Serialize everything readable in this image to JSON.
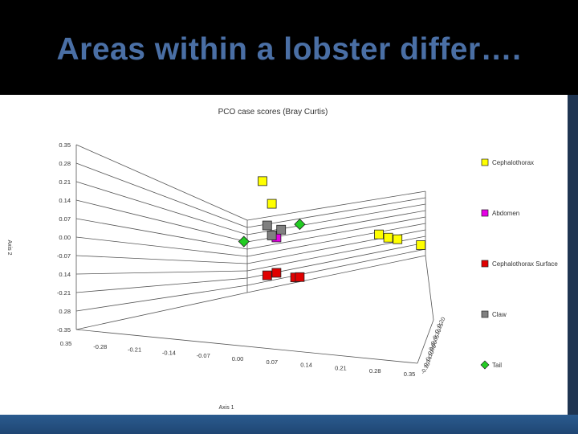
{
  "slide": {
    "title": "Areas within a lobster differ…."
  },
  "colors": {
    "background": "#000000",
    "title": "#4a6fa5",
    "cephalothorax": "#ffff00",
    "abdomen": "#e600e6",
    "cephalothorax_surface": "#e00000",
    "claw": "#808080",
    "tail": "#22cc22"
  },
  "chart_data": {
    "type": "scatter",
    "title": "PCO case scores (Bray Curtis)",
    "xlabel": "Axis 1",
    "ylabel": "Axis 2",
    "y_ticks": [
      "0.35",
      "0.28",
      "0.21",
      "0.14",
      "0.07",
      "0.00",
      "-0.07",
      "0.14",
      "-0.21",
      "0.28",
      "-0.35"
    ],
    "x_ticks": [
      "0.35",
      "-0.28",
      "-0.21",
      "-0.14",
      "-0.07",
      "0.00",
      "0.07",
      "0.14",
      "0.21",
      "0.28",
      "0.35"
    ],
    "z_ticks": [
      "0.20",
      "0.15",
      "0.10",
      "0.05",
      "0.00",
      "-0.05",
      "-0.10",
      "-0.14",
      "-0.20"
    ],
    "legend_position": "right",
    "series": [
      {
        "name": "Cephalothorax",
        "marker": "square",
        "color": "#ffff00",
        "points": [
          {
            "x": 0.05,
            "y": 0.28
          },
          {
            "x": 0.07,
            "y": 0.17
          },
          {
            "x": 0.3,
            "y": 0.02
          },
          {
            "x": 0.32,
            "y": 0.0
          },
          {
            "x": 0.34,
            "y": -0.01
          },
          {
            "x": 0.39,
            "y": -0.05
          }
        ]
      },
      {
        "name": "Abdomen",
        "marker": "square",
        "color": "#e600e6",
        "points": [
          {
            "x": 0.08,
            "y": 0.0
          }
        ]
      },
      {
        "name": "Cephalothorax Surface",
        "marker": "square",
        "color": "#e00000",
        "points": [
          {
            "x": 0.06,
            "y": -0.19
          },
          {
            "x": 0.08,
            "y": -0.18
          },
          {
            "x": 0.12,
            "y": -0.21
          },
          {
            "x": 0.13,
            "y": -0.21
          }
        ]
      },
      {
        "name": "Claw",
        "marker": "square",
        "color": "#808080",
        "points": [
          {
            "x": 0.06,
            "y": 0.06
          },
          {
            "x": 0.07,
            "y": 0.01
          },
          {
            "x": 0.09,
            "y": 0.04
          }
        ]
      },
      {
        "name": "Tail",
        "marker": "diamond",
        "color": "#22cc22",
        "points": [
          {
            "x": 0.01,
            "y": -0.02
          },
          {
            "x": 0.13,
            "y": 0.07
          }
        ]
      }
    ]
  }
}
